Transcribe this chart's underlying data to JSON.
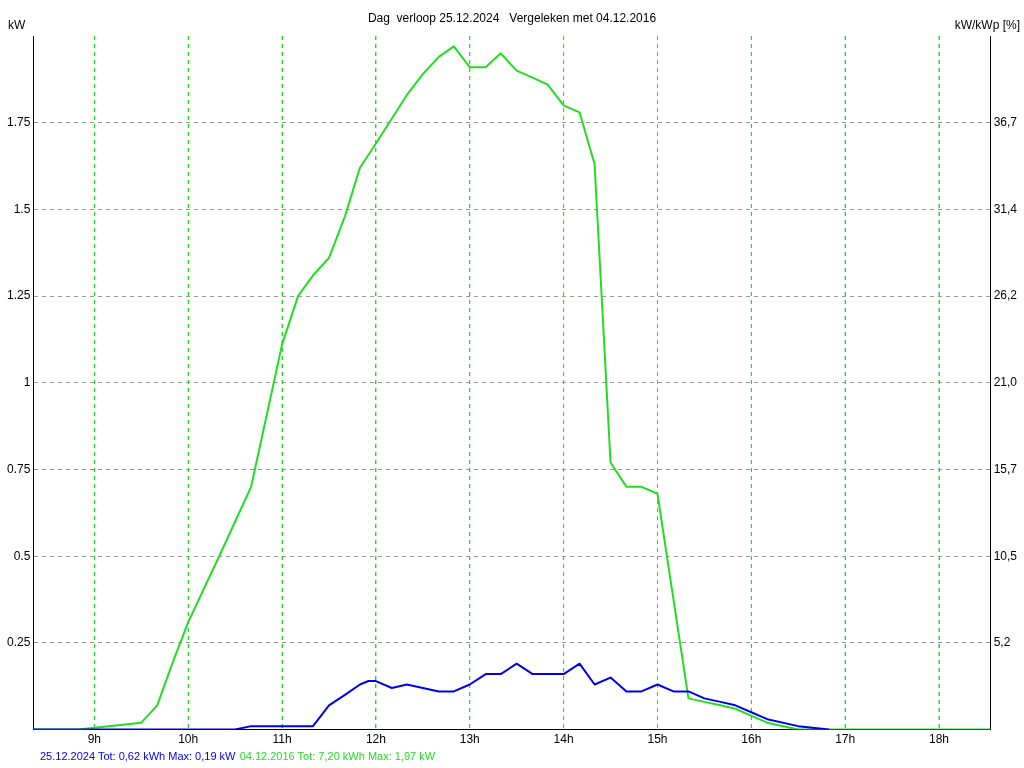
{
  "chart_data": {
    "type": "line",
    "title": "Dag  verloop 25.12.2024   Vergeleken met 04.12.2016",
    "ylabel": "kW",
    "y2label": "kW/kWp [%]",
    "xlim": [
      8.35,
      18.55
    ],
    "xticks": [
      {
        "value": 9,
        "label": "9h"
      },
      {
        "value": 10,
        "label": "10h"
      },
      {
        "value": 11,
        "label": "11h"
      },
      {
        "value": 12,
        "label": "12h"
      },
      {
        "value": 13,
        "label": "13h"
      },
      {
        "value": 14,
        "label": "14h"
      },
      {
        "value": 15,
        "label": "15h"
      },
      {
        "value": 16,
        "label": "16h"
      },
      {
        "value": 17,
        "label": "17h"
      },
      {
        "value": 18,
        "label": "18h"
      }
    ],
    "ylim": [
      0,
      2
    ],
    "yticks": [
      0.25,
      0.5,
      0.75,
      1,
      1.25,
      1.5,
      1.75
    ],
    "y2lim": [
      0,
      41.92
    ],
    "y2ticks": [
      {
        "value": 5.24,
        "label": "5,2"
      },
      {
        "value": 10.48,
        "label": "10,5"
      },
      {
        "value": 15.72,
        "label": "15,7"
      },
      {
        "value": 20.96,
        "label": "21,0"
      },
      {
        "value": 26.2,
        "label": "26,2"
      },
      {
        "value": 31.44,
        "label": "31,4"
      },
      {
        "value": 36.68,
        "label": "36,7"
      }
    ],
    "grid": true,
    "legend": false,
    "marker": "none",
    "line_style": "solid",
    "series": [
      {
        "color": "#0000ee",
        "x": [
          8.35,
          10,
          10.5,
          10.67,
          11,
          11.33,
          11.5,
          11.67,
          11.83,
          11.92,
          12,
          12.17,
          12.33,
          12.5,
          12.67,
          12.83,
          13,
          13.17,
          13.33,
          13.5,
          13.67,
          13.83,
          14,
          14.17,
          14.33,
          14.5,
          14.67,
          14.83,
          15,
          15.17,
          15.33,
          15.5,
          15.67,
          15.83,
          16,
          16.17,
          16.5,
          16.83
        ],
        "values": [
          0,
          0,
          0,
          0.01,
          0.01,
          0.01,
          0.07,
          0.1,
          0.13,
          0.14,
          0.14,
          0.12,
          0.13,
          0.12,
          0.11,
          0.11,
          0.13,
          0.16,
          0.16,
          0.19,
          0.16,
          0.16,
          0.16,
          0.19,
          0.13,
          0.15,
          0.11,
          0.11,
          0.13,
          0.11,
          0.11,
          0.09,
          0.08,
          0.07,
          0.05,
          0.03,
          0.01,
          0
        ]
      },
      {
        "color": "#22dd22",
        "x": [
          8.35,
          8.83,
          9.5,
          9.67,
          9.83,
          10,
          10.33,
          10.67,
          11,
          11.17,
          11.33,
          11.5,
          11.67,
          11.83,
          12,
          12.33,
          12.5,
          12.67,
          12.83,
          13,
          13.17,
          13.33,
          13.5,
          13.67,
          13.83,
          14,
          14.17,
          14.33,
          14.5,
          14.67,
          14.83,
          15,
          15.33,
          15.5,
          15.67,
          15.83,
          16.17,
          16.5,
          18.55
        ],
        "values": [
          0,
          0,
          0.02,
          0.07,
          0.19,
          0.31,
          0.5,
          0.7,
          1.11,
          1.25,
          1.31,
          1.36,
          1.48,
          1.62,
          1.69,
          1.83,
          1.89,
          1.94,
          1.97,
          1.91,
          1.91,
          1.95,
          1.9,
          1.88,
          1.86,
          1.8,
          1.78,
          1.63,
          0.77,
          0.7,
          0.7,
          0.68,
          0.09,
          0.08,
          0.07,
          0.06,
          0.02,
          0,
          0
        ]
      }
    ],
    "annotations": [
      "25.12.2024 Tot: 0,62 kWh Max: 0,19 kW",
      "04.12.2016 Tot: 7,20 kWh Max: 1,97 kW"
    ]
  }
}
